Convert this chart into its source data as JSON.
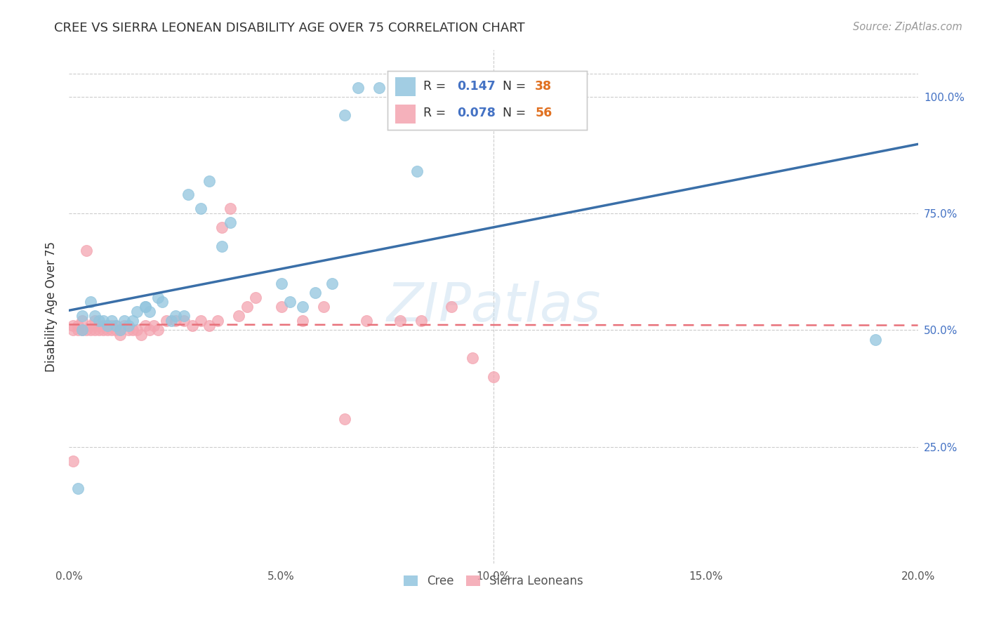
{
  "title": "CREE VS SIERRA LEONEAN DISABILITY AGE OVER 75 CORRELATION CHART",
  "source": "Source: ZipAtlas.com",
  "ylabel_text": "Disability Age Over 75",
  "xlim": [
    0.0,
    0.2
  ],
  "ylim": [
    0.0,
    1.1
  ],
  "xtick_labels": [
    "0.0%",
    "",
    "5.0%",
    "",
    "10.0%",
    "",
    "15.0%",
    "",
    "20.0%"
  ],
  "xtick_vals": [
    0.0,
    0.025,
    0.05,
    0.075,
    0.1,
    0.125,
    0.15,
    0.175,
    0.2
  ],
  "ytick_labels": [
    "25.0%",
    "50.0%",
    "75.0%",
    "100.0%"
  ],
  "ytick_vals": [
    0.25,
    0.5,
    0.75,
    1.0
  ],
  "cree_color": "#92c5de",
  "sl_color": "#f4a4b0",
  "cree_line_color": "#3a6fa8",
  "sl_line_color": "#e8717a",
  "legend_r_cree": "0.147",
  "legend_n_cree": "38",
  "legend_r_sl": "0.078",
  "legend_n_sl": "56",
  "watermark": "ZIPatlas",
  "cree_x": [
    0.003,
    0.003,
    0.005,
    0.006,
    0.007,
    0.008,
    0.009,
    0.01,
    0.011,
    0.012,
    0.013,
    0.014,
    0.015,
    0.016,
    0.018,
    0.018,
    0.019,
    0.021,
    0.022,
    0.024,
    0.025,
    0.027,
    0.028,
    0.031,
    0.033,
    0.036,
    0.038,
    0.05,
    0.052,
    0.055,
    0.058,
    0.062,
    0.065,
    0.068,
    0.073,
    0.082,
    0.19,
    0.002
  ],
  "cree_y": [
    0.53,
    0.5,
    0.56,
    0.53,
    0.52,
    0.52,
    0.51,
    0.52,
    0.51,
    0.5,
    0.52,
    0.51,
    0.52,
    0.54,
    0.55,
    0.55,
    0.54,
    0.57,
    0.56,
    0.52,
    0.53,
    0.53,
    0.79,
    0.76,
    0.82,
    0.68,
    0.73,
    0.6,
    0.56,
    0.55,
    0.58,
    0.6,
    0.96,
    1.02,
    1.02,
    0.84,
    0.48,
    0.16
  ],
  "sl_x": [
    0.001,
    0.001,
    0.001,
    0.002,
    0.002,
    0.003,
    0.003,
    0.004,
    0.004,
    0.005,
    0.005,
    0.006,
    0.006,
    0.007,
    0.007,
    0.008,
    0.008,
    0.009,
    0.009,
    0.01,
    0.01,
    0.011,
    0.011,
    0.012,
    0.012,
    0.013,
    0.014,
    0.015,
    0.016,
    0.017,
    0.018,
    0.019,
    0.02,
    0.021,
    0.023,
    0.025,
    0.027,
    0.029,
    0.031,
    0.033,
    0.035,
    0.036,
    0.038,
    0.04,
    0.042,
    0.044,
    0.05,
    0.055,
    0.06,
    0.065,
    0.07,
    0.078,
    0.083,
    0.09,
    0.095,
    0.1
  ],
  "sl_y": [
    0.51,
    0.5,
    0.22,
    0.51,
    0.5,
    0.52,
    0.5,
    0.5,
    0.67,
    0.51,
    0.5,
    0.52,
    0.5,
    0.5,
    0.51,
    0.51,
    0.5,
    0.51,
    0.5,
    0.51,
    0.5,
    0.51,
    0.5,
    0.49,
    0.5,
    0.51,
    0.5,
    0.5,
    0.5,
    0.49,
    0.51,
    0.5,
    0.51,
    0.5,
    0.52,
    0.52,
    0.52,
    0.51,
    0.52,
    0.51,
    0.52,
    0.72,
    0.76,
    0.53,
    0.55,
    0.57,
    0.55,
    0.52,
    0.55,
    0.31,
    0.52,
    0.52,
    0.52,
    0.55,
    0.44,
    0.4
  ]
}
